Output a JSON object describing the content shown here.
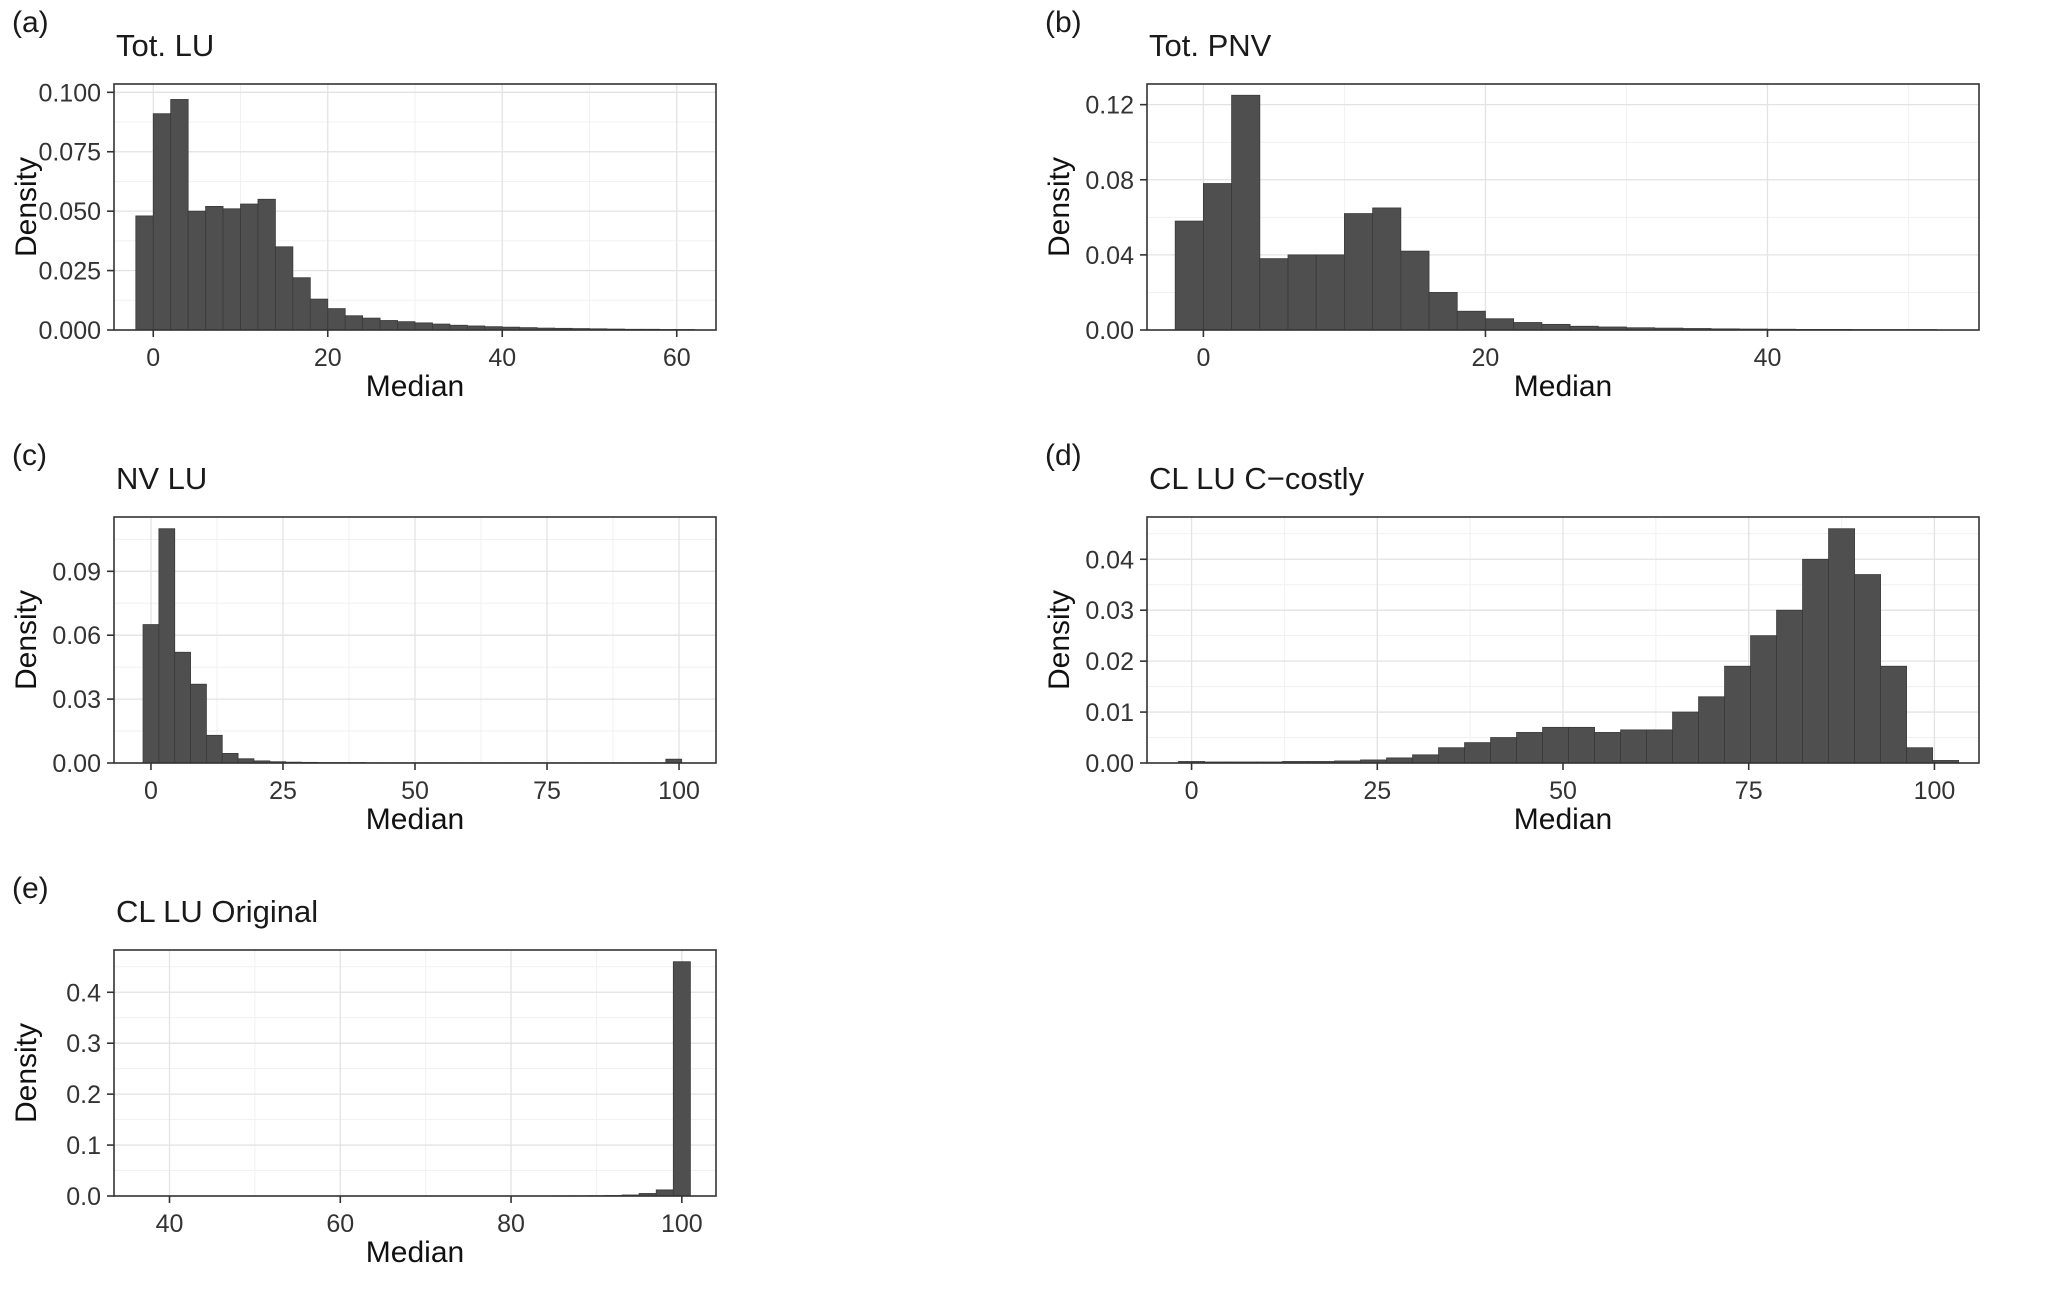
{
  "colors": {
    "bar_fill": "#4f4f4f",
    "bar_stroke": "#3a3a3a",
    "grid_major": "#e3e3e3",
    "grid_minor": "#f1f1f1",
    "panel_border": "#333333",
    "tick_text": "#333333",
    "text": "#111111",
    "background": "#ffffff"
  },
  "chart_data": [
    {
      "type": "bar",
      "representation": "histogram",
      "tag": "(a)",
      "title": "Tot. LU",
      "xlabel": "Median",
      "ylabel": "Density",
      "xlim": [
        -4.5,
        64.5
      ],
      "ylim": [
        0,
        0.1035
      ],
      "xticks": [
        0,
        20,
        40,
        60
      ],
      "xtick_labels": [
        "0",
        "20",
        "40",
        "60"
      ],
      "yticks": [
        0,
        0.025,
        0.05,
        0.075,
        0.1
      ],
      "ytick_labels": [
        "0.000",
        "0.025",
        "0.050",
        "0.075",
        "0.100"
      ],
      "bin_start": -2,
      "bin_width": 2,
      "densities": [
        0.048,
        0.091,
        0.097,
        0.05,
        0.052,
        0.051,
        0.053,
        0.055,
        0.035,
        0.022,
        0.013,
        0.009,
        0.006,
        0.005,
        0.004,
        0.0035,
        0.003,
        0.0025,
        0.002,
        0.0017,
        0.0014,
        0.0012,
        0.001,
        0.0008,
        0.0007,
        0.0006,
        0.0005,
        0.0004,
        0.0003,
        0.0003,
        0.0002,
        0.0002
      ],
      "grid": true,
      "legend": "none"
    },
    {
      "type": "bar",
      "representation": "histogram",
      "tag": "(b)",
      "title": "Tot. PNV",
      "xlabel": "Median",
      "ylabel": "Density",
      "xlim": [
        -4,
        55
      ],
      "ylim": [
        0,
        0.131
      ],
      "xticks": [
        0,
        20,
        40
      ],
      "xtick_labels": [
        "0",
        "20",
        "40"
      ],
      "yticks": [
        0,
        0.04,
        0.08,
        0.12
      ],
      "ytick_labels": [
        "0.00",
        "0.04",
        "0.08",
        "0.12"
      ],
      "bin_start": -2,
      "bin_width": 2,
      "densities": [
        0.058,
        0.078,
        0.125,
        0.038,
        0.04,
        0.04,
        0.062,
        0.065,
        0.042,
        0.02,
        0.01,
        0.006,
        0.004,
        0.003,
        0.002,
        0.0016,
        0.0012,
        0.001,
        0.0008,
        0.0006,
        0.0005,
        0.0004,
        0.0003,
        0.0003,
        0.0002,
        0.0002,
        0.0002
      ],
      "grid": true,
      "legend": "none"
    },
    {
      "type": "bar",
      "representation": "histogram",
      "tag": "(c)",
      "title": "NV LU",
      "xlabel": "Median",
      "ylabel": "Density",
      "xlim": [
        -7,
        107
      ],
      "ylim": [
        0,
        0.1155
      ],
      "xticks": [
        0,
        25,
        50,
        75,
        100
      ],
      "xtick_labels": [
        "0",
        "25",
        "50",
        "75",
        "100"
      ],
      "yticks": [
        0,
        0.03,
        0.06,
        0.09
      ],
      "ytick_labels": [
        "0.00",
        "0.03",
        "0.06",
        "0.09"
      ],
      "bin_start": -1.5,
      "bin_width": 3,
      "densities": [
        0.065,
        0.11,
        0.052,
        0.037,
        0.013,
        0.0045,
        0.002,
        0.001,
        0.0006,
        0.0004,
        0.0003,
        0.0002,
        0.0002,
        0.0002,
        0.0001,
        0.0001,
        0.0001,
        0.0001,
        0.0001,
        0.0001,
        0.0001,
        0.0001,
        0.0001,
        0.0001,
        0.0001,
        0.0001,
        0.0001,
        0.0001,
        0.0001,
        0.0001,
        0.0001,
        0.0001,
        0.0001,
        0.0018
      ],
      "grid": true,
      "legend": "none"
    },
    {
      "type": "bar",
      "representation": "histogram",
      "tag": "(d)",
      "title": "CL LU C−costly",
      "xlabel": "Median",
      "ylabel": "Density",
      "xlim": [
        -6,
        106
      ],
      "ylim": [
        0,
        0.0483
      ],
      "xticks": [
        0,
        25,
        50,
        75,
        100
      ],
      "xtick_labels": [
        "0",
        "25",
        "50",
        "75",
        "100"
      ],
      "yticks": [
        0,
        0.01,
        0.02,
        0.03,
        0.04
      ],
      "ytick_labels": [
        "0.00",
        "0.01",
        "0.02",
        "0.03",
        "0.04"
      ],
      "bin_start": -1.75,
      "bin_width": 3.5,
      "densities": [
        0.0003,
        0.0002,
        0.0002,
        0.0002,
        0.0003,
        0.0003,
        0.0004,
        0.0006,
        0.001,
        0.0016,
        0.003,
        0.004,
        0.005,
        0.006,
        0.007,
        0.007,
        0.006,
        0.0065,
        0.0065,
        0.01,
        0.013,
        0.019,
        0.025,
        0.03,
        0.04,
        0.046,
        0.037,
        0.019,
        0.003,
        0.0005
      ],
      "grid": true,
      "legend": "none"
    },
    {
      "type": "bar",
      "representation": "histogram",
      "tag": "(e)",
      "title": "CL LU Original",
      "xlabel": "Median",
      "ylabel": "Density",
      "xlim": [
        33.5,
        104
      ],
      "ylim": [
        0,
        0.483
      ],
      "xticks": [
        40,
        60,
        80,
        100
      ],
      "xtick_labels": [
        "40",
        "60",
        "80",
        "100"
      ],
      "yticks": [
        0,
        0.1,
        0.2,
        0.3,
        0.4
      ],
      "ytick_labels": [
        "0.0",
        "0.1",
        "0.2",
        "0.3",
        "0.4"
      ],
      "bin_start": 35,
      "bin_width": 2,
      "densities": [
        0,
        0,
        0,
        0,
        0,
        0,
        0,
        0,
        0,
        0,
        0,
        0,
        0,
        0,
        0,
        0,
        0,
        0,
        0,
        0,
        0,
        0,
        0,
        0,
        0,
        0.0003,
        0.0004,
        0.0006,
        0.001,
        0.002,
        0.005,
        0.012,
        0.46
      ],
      "grid": true,
      "legend": "none"
    }
  ]
}
